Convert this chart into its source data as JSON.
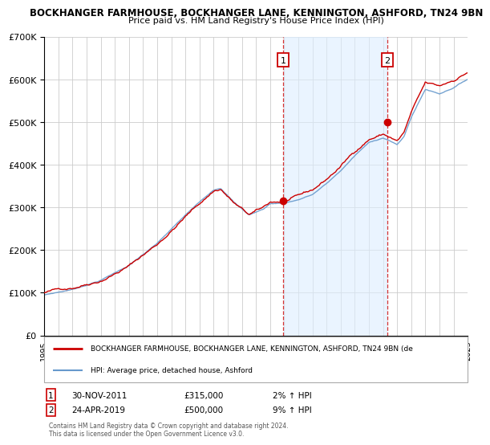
{
  "title": "BOCKHANGER FARMHOUSE, BOCKHANGER LANE, KENNINGTON, ASHFORD, TN24 9BN",
  "subtitle": "Price paid vs. HM Land Registry's House Price Index (HPI)",
  "legend_line1": "BOCKHANGER FARMHOUSE, BOCKHANGER LANE, KENNINGTON, ASHFORD, TN24 9BN (de",
  "legend_line2": "HPI: Average price, detached house, Ashford",
  "footer1": "Contains HM Land Registry data © Crown copyright and database right 2024.",
  "footer2": "This data is licensed under the Open Government Licence v3.0.",
  "ann1_label": "1",
  "ann1_date": "30-NOV-2011",
  "ann1_price": "£315,000",
  "ann1_pct": "2% ↑ HPI",
  "ann1_x": 2011.917,
  "ann1_y": 315000,
  "ann2_label": "2",
  "ann2_date": "24-APR-2019",
  "ann2_price": "£500,000",
  "ann2_pct": "9% ↑ HPI",
  "ann2_x": 2019.31,
  "ann2_y": 500000,
  "ylim": [
    0,
    700000
  ],
  "xlim_start": 1995,
  "xlim_end": 2025,
  "hpi_color": "#6699cc",
  "price_color": "#cc0000",
  "shade_color": "#ddeeff",
  "grid_color": "#cccccc",
  "background_color": "#ffffff",
  "ann_box_color": "#cc0000"
}
